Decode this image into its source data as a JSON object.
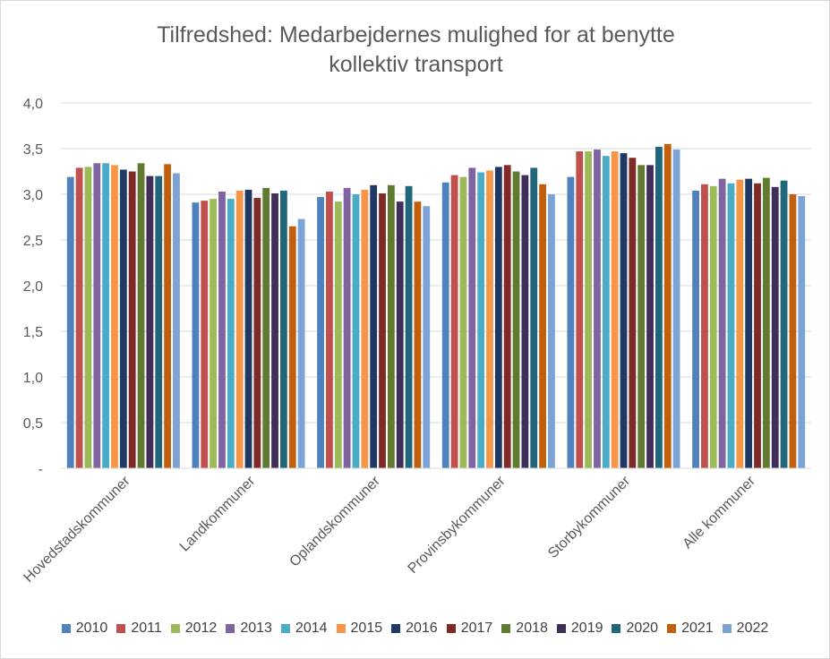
{
  "chart_data": {
    "type": "bar",
    "title": [
      "Tilfredshed: Medarbejdernes mulighed for at benytte",
      "kollektiv transport"
    ],
    "categories": [
      "Hovedstadskommuner",
      "Landkommuner",
      "Oplandskommuner",
      "Provinsbykommuner",
      "Storbykommuner",
      "Alle kommuner"
    ],
    "ylim": [
      0,
      4.0
    ],
    "yticks": [
      {
        "value": 0,
        "label": "-"
      },
      {
        "value": 0.5,
        "label": "0,5"
      },
      {
        "value": 1.0,
        "label": "1,0"
      },
      {
        "value": 1.5,
        "label": "1,5"
      },
      {
        "value": 2.0,
        "label": "2,0"
      },
      {
        "value": 2.5,
        "label": "2,5"
      },
      {
        "value": 3.0,
        "label": "3,0"
      },
      {
        "value": 3.5,
        "label": "3,5"
      },
      {
        "value": 4.0,
        "label": "4,0"
      }
    ],
    "grid": true,
    "legend_position": "bottom",
    "series": [
      {
        "name": "2010",
        "color": "#4f81bd",
        "values": [
          3.19,
          2.91,
          2.97,
          3.13,
          3.19,
          3.04
        ]
      },
      {
        "name": "2011",
        "color": "#c0504d",
        "values": [
          3.29,
          2.93,
          3.03,
          3.21,
          3.47,
          3.11
        ]
      },
      {
        "name": "2012",
        "color": "#9bbb59",
        "values": [
          3.3,
          2.95,
          2.92,
          3.19,
          3.47,
          3.09
        ]
      },
      {
        "name": "2013",
        "color": "#8064a2",
        "values": [
          3.34,
          3.03,
          3.07,
          3.29,
          3.49,
          3.17
        ]
      },
      {
        "name": "2014",
        "color": "#4bacc6",
        "values": [
          3.34,
          2.95,
          3.0,
          3.24,
          3.42,
          3.12
        ]
      },
      {
        "name": "2015",
        "color": "#f79646",
        "values": [
          3.32,
          3.04,
          3.05,
          3.26,
          3.47,
          3.16
        ]
      },
      {
        "name": "2016",
        "color": "#1f3864",
        "values": [
          3.27,
          3.05,
          3.1,
          3.3,
          3.45,
          3.17
        ]
      },
      {
        "name": "2017",
        "color": "#7f2a27",
        "values": [
          3.25,
          2.96,
          3.01,
          3.32,
          3.4,
          3.12
        ]
      },
      {
        "name": "2018",
        "color": "#5f7a31",
        "values": [
          3.34,
          3.07,
          3.1,
          3.25,
          3.32,
          3.18
        ]
      },
      {
        "name": "2019",
        "color": "#3f2e5a",
        "values": [
          3.2,
          3.01,
          2.92,
          3.21,
          3.32,
          3.08
        ]
      },
      {
        "name": "2020",
        "color": "#21667a",
        "values": [
          3.2,
          3.04,
          3.09,
          3.29,
          3.52,
          3.15
        ]
      },
      {
        "name": "2021",
        "color": "#c0600f",
        "values": [
          3.33,
          2.65,
          2.92,
          3.11,
          3.55,
          3.0
        ]
      },
      {
        "name": "2022",
        "color": "#7ba3d6",
        "values": [
          3.23,
          2.73,
          2.87,
          3.0,
          3.49,
          2.98
        ]
      }
    ]
  }
}
